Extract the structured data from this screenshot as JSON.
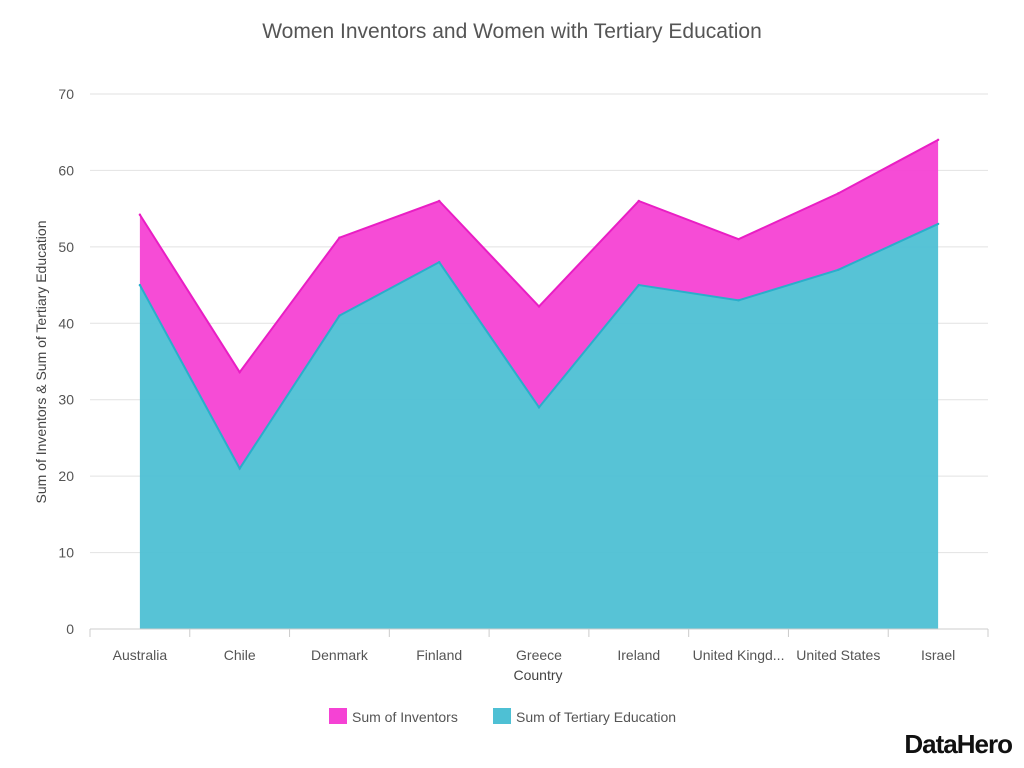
{
  "chart_data": {
    "type": "area",
    "stacked": true,
    "title": "Women Inventors and Women with Tertiary Education",
    "xlabel": "Country",
    "ylabel": "Sum of Inventors & Sum of Tertiary Education",
    "ylim": [
      0,
      70
    ],
    "yticks": [
      0,
      10,
      20,
      30,
      40,
      50,
      60,
      70
    ],
    "grid": true,
    "legend_position": "bottom",
    "categories": [
      "Australia",
      "Chile",
      "Denmark",
      "Finland",
      "Greece",
      "Ireland",
      "United Kingd...",
      "United States",
      "Israel"
    ],
    "series": [
      {
        "name": "Sum of Inventors",
        "color": "#f542d4",
        "values": [
          9.2,
          12.6,
          10.2,
          8.0,
          13.2,
          11.0,
          8.0,
          10.0,
          11.0
        ]
      },
      {
        "name": "Sum of Tertiary Education",
        "color": "#4ec0d4",
        "values": [
          45,
          21,
          41,
          48,
          29,
          45,
          43,
          47,
          53
        ]
      }
    ]
  },
  "brand": {
    "label": "DataHero"
  }
}
